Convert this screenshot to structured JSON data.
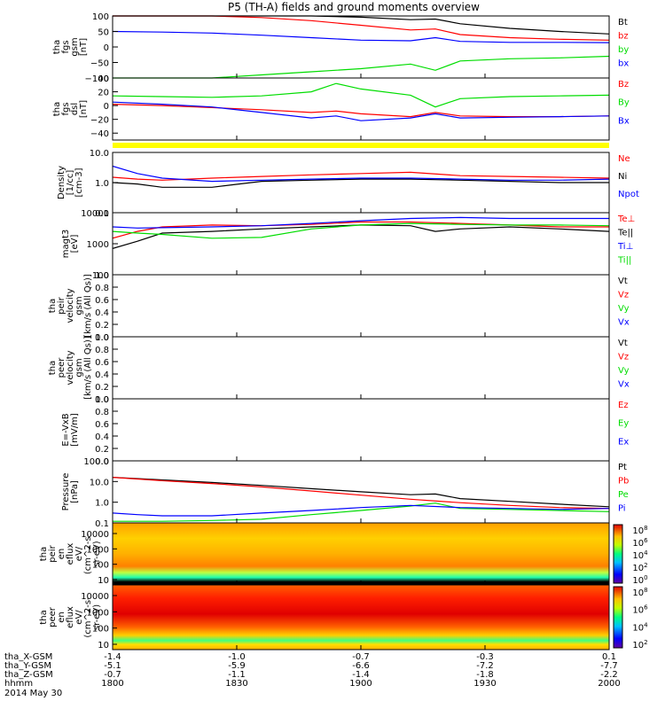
{
  "title": "P5 (TH-A) fields and ground moments overview",
  "colors": {
    "black": "#000000",
    "red": "#ff0000",
    "green": "#00dd00",
    "blue": "#0000ff",
    "yellow": "#ffff00"
  },
  "chart_data": [
    {
      "id": "fgs-gsm",
      "type": "line",
      "ylabel": [
        "tha",
        "fgs",
        "gsm",
        "[nT]"
      ],
      "yticks": [
        "100",
        "50",
        "0",
        "−50",
        "−100"
      ],
      "ylim": [
        -100,
        100
      ],
      "series": [
        {
          "name": "Bt",
          "color": "#000000",
          "x": [
            0,
            0.1,
            0.2,
            0.3,
            0.4,
            0.5,
            0.6,
            0.65,
            0.7,
            0.8,
            0.9,
            1.0
          ],
          "y": [
            130,
            122,
            115,
            110,
            103,
            96,
            88,
            90,
            75,
            60,
            50,
            42
          ]
        },
        {
          "name": "bz",
          "color": "#ff0000",
          "x": [
            0,
            0.1,
            0.2,
            0.3,
            0.4,
            0.5,
            0.6,
            0.65,
            0.7,
            0.8,
            0.9,
            1.0
          ],
          "y": [
            130,
            120,
            110,
            95,
            85,
            70,
            55,
            58,
            40,
            30,
            25,
            22
          ]
        },
        {
          "name": "by",
          "color": "#00dd00",
          "x": [
            0,
            0.1,
            0.2,
            0.3,
            0.4,
            0.5,
            0.6,
            0.65,
            0.7,
            0.8,
            0.9,
            1.0
          ],
          "y": [
            -140,
            -120,
            -100,
            -90,
            -80,
            -70,
            -55,
            -75,
            -45,
            -38,
            -35,
            -30
          ]
        },
        {
          "name": "bx",
          "color": "#0000ff",
          "x": [
            0,
            0.1,
            0.2,
            0.3,
            0.4,
            0.5,
            0.6,
            0.65,
            0.7,
            0.8,
            0.9,
            1.0
          ],
          "y": [
            50,
            48,
            45,
            38,
            30,
            22,
            20,
            30,
            18,
            15,
            15,
            14
          ]
        }
      ]
    },
    {
      "id": "fgs-dsl",
      "type": "line",
      "ylabel": [
        "tha",
        "fgs",
        "dsl",
        "[nT]"
      ],
      "yticks": [
        "40",
        "20",
        "0",
        "−20",
        "−40"
      ],
      "ylim": [
        -50,
        40
      ],
      "series": [
        {
          "name": "Bz",
          "color": "#ff0000",
          "x": [
            0,
            0.1,
            0.2,
            0.3,
            0.4,
            0.45,
            0.5,
            0.6,
            0.65,
            0.7,
            0.8,
            0.9,
            1.0
          ],
          "y": [
            2,
            0,
            -3,
            -6,
            -10,
            -8,
            -12,
            -16,
            -10,
            -15,
            -16,
            -16,
            -15
          ]
        },
        {
          "name": "By",
          "color": "#00dd00",
          "x": [
            0,
            0.1,
            0.2,
            0.3,
            0.4,
            0.45,
            0.5,
            0.6,
            0.65,
            0.7,
            0.8,
            0.9,
            1.0
          ],
          "y": [
            14,
            13,
            12,
            14,
            20,
            32,
            24,
            15,
            -2,
            10,
            13,
            14,
            15
          ]
        },
        {
          "name": "Bx",
          "color": "#0000ff",
          "x": [
            0,
            0.1,
            0.2,
            0.3,
            0.4,
            0.45,
            0.5,
            0.6,
            0.65,
            0.7,
            0.8,
            0.9,
            1.0
          ],
          "y": [
            5,
            2,
            -2,
            -10,
            -18,
            -15,
            -22,
            -18,
            -12,
            -18,
            -17,
            -16,
            -15
          ]
        }
      ]
    },
    {
      "id": "density",
      "type": "line",
      "scale": "log",
      "ylabel": [
        "Density",
        "[1/cc]",
        "[cm-3]"
      ],
      "yticks": [
        "10.0",
        "1.0",
        "0.1"
      ],
      "ylim": [
        0.1,
        10
      ],
      "series": [
        {
          "name": "Ne",
          "color": "#ff0000",
          "x": [
            0,
            0.05,
            0.1,
            0.2,
            0.3,
            0.4,
            0.5,
            0.6,
            0.7,
            0.8,
            0.9,
            1.0
          ],
          "y": [
            1.5,
            1.3,
            1.2,
            1.4,
            1.6,
            1.8,
            2.0,
            2.2,
            1.7,
            1.6,
            1.5,
            1.4
          ]
        },
        {
          "name": "Ni",
          "color": "#000000",
          "x": [
            0,
            0.05,
            0.1,
            0.2,
            0.3,
            0.4,
            0.5,
            0.6,
            0.7,
            0.8,
            0.9,
            1.0
          ],
          "y": [
            1.0,
            0.9,
            0.7,
            0.7,
            1.1,
            1.2,
            1.3,
            1.3,
            1.2,
            1.1,
            1.0,
            1.0
          ]
        },
        {
          "name": "Npot",
          "color": "#0000ff",
          "x": [
            0,
            0.05,
            0.1,
            0.2,
            0.3,
            0.4,
            0.5,
            0.6,
            0.7,
            0.8,
            0.9,
            1.0
          ],
          "y": [
            3.5,
            2.0,
            1.4,
            1.1,
            1.2,
            1.3,
            1.4,
            1.4,
            1.3,
            1.2,
            1.2,
            1.3
          ]
        }
      ]
    },
    {
      "id": "temperature",
      "type": "line",
      "scale": "log",
      "ylabel": [
        "magt3",
        "[eV]"
      ],
      "yticks": [
        "10000",
        "1000",
        "100"
      ],
      "ylim": [
        100,
        10000
      ],
      "series": [
        {
          "name": "Te⊥",
          "color": "#ff0000",
          "x": [
            0,
            0.05,
            0.1,
            0.2,
            0.3,
            0.4,
            0.5,
            0.6,
            0.7,
            0.8,
            0.9,
            1.0
          ],
          "y": [
            1500,
            2500,
            3500,
            4000,
            3800,
            4200,
            5000,
            5000,
            4500,
            4000,
            3500,
            3500
          ]
        },
        {
          "name": "Te||",
          "color": "#000000",
          "x": [
            0,
            0.05,
            0.1,
            0.2,
            0.3,
            0.4,
            0.5,
            0.6,
            0.65,
            0.7,
            0.8,
            0.9,
            1.0
          ],
          "y": [
            700,
            1200,
            2200,
            2500,
            3000,
            3500,
            4000,
            3800,
            2500,
            3000,
            3500,
            3000,
            2500
          ]
        },
        {
          "name": "Ti⊥",
          "color": "#0000ff",
          "x": [
            0,
            0.05,
            0.1,
            0.2,
            0.3,
            0.4,
            0.5,
            0.6,
            0.7,
            0.8,
            0.9,
            1.0
          ],
          "y": [
            3500,
            3200,
            3300,
            3500,
            3800,
            4500,
            5500,
            6500,
            7000,
            6500,
            6500,
            6500
          ]
        },
        {
          "name": "Ti||",
          "color": "#00dd00",
          "x": [
            0,
            0.05,
            0.1,
            0.2,
            0.3,
            0.4,
            0.5,
            0.6,
            0.7,
            0.8,
            0.9,
            1.0
          ],
          "y": [
            2500,
            2200,
            2000,
            1500,
            1600,
            3000,
            4000,
            4500,
            4200,
            4000,
            4000,
            3800
          ]
        }
      ]
    },
    {
      "id": "peir-velocity",
      "type": "line",
      "ylabel": [
        "tha",
        "peir",
        "velocity",
        "gsm",
        "[km/s (All Qs)]"
      ],
      "yticks": [
        "1.0",
        "0.8",
        "0.6",
        "0.4",
        "0.2",
        "0.0"
      ],
      "ylim": [
        0,
        1
      ],
      "series": [
        {
          "name": "Vt",
          "color": "#000000",
          "x": [],
          "y": []
        },
        {
          "name": "Vz",
          "color": "#ff0000",
          "x": [],
          "y": []
        },
        {
          "name": "Vy",
          "color": "#00dd00",
          "x": [],
          "y": []
        },
        {
          "name": "Vx",
          "color": "#0000ff",
          "x": [],
          "y": []
        }
      ]
    },
    {
      "id": "peer-velocity",
      "type": "line",
      "ylabel": [
        "tha",
        "peer",
        "velocity",
        "gsm",
        "[km/s (All Qs)]"
      ],
      "yticks": [
        "1.0",
        "0.8",
        "0.6",
        "0.4",
        "0.2",
        "0.0"
      ],
      "ylim": [
        0,
        1
      ],
      "series": [
        {
          "name": "Vt",
          "color": "#000000",
          "x": [],
          "y": []
        },
        {
          "name": "Vz",
          "color": "#ff0000",
          "x": [],
          "y": []
        },
        {
          "name": "Vy",
          "color": "#00dd00",
          "x": [],
          "y": []
        },
        {
          "name": "Vx",
          "color": "#0000ff",
          "x": [],
          "y": []
        }
      ]
    },
    {
      "id": "efield",
      "type": "line",
      "ylabel": [
        "E=-VxB",
        "[mV/m]"
      ],
      "yticks": [
        "1.0",
        "0.8",
        "0.6",
        "0.4",
        "0.2",
        "0.0"
      ],
      "ylim": [
        0,
        1
      ],
      "series": [
        {
          "name": "Ez",
          "color": "#ff0000",
          "x": [],
          "y": []
        },
        {
          "name": "Ey",
          "color": "#00dd00",
          "x": [],
          "y": []
        },
        {
          "name": "Ex",
          "color": "#0000ff",
          "x": [],
          "y": []
        }
      ]
    },
    {
      "id": "pressure",
      "type": "line",
      "scale": "log",
      "ylabel": [
        "Pressure",
        "[nPa]"
      ],
      "yticks": [
        "100.0",
        "10.0",
        "1.0",
        "0.1"
      ],
      "ylim": [
        0.1,
        100
      ],
      "series": [
        {
          "name": "Pt",
          "color": "#000000",
          "x": [
            0,
            0.1,
            0.2,
            0.3,
            0.4,
            0.5,
            0.6,
            0.65,
            0.7,
            0.8,
            0.9,
            1.0
          ],
          "y": [
            16,
            12,
            9,
            6.5,
            4.5,
            3.2,
            2.3,
            2.5,
            1.5,
            1.1,
            0.8,
            0.6
          ]
        },
        {
          "name": "Pb",
          "color": "#ff0000",
          "x": [
            0,
            0.1,
            0.2,
            0.3,
            0.4,
            0.5,
            0.6,
            0.7,
            0.8,
            0.9,
            1.0
          ],
          "y": [
            16,
            11,
            8,
            5.5,
            3.5,
            2.2,
            1.4,
            0.95,
            0.7,
            0.55,
            0.5
          ]
        },
        {
          "name": "Pe",
          "color": "#00dd00",
          "x": [
            0,
            0.1,
            0.2,
            0.3,
            0.4,
            0.5,
            0.6,
            0.65,
            0.7,
            0.8,
            0.9,
            1.0
          ],
          "y": [
            0.12,
            0.12,
            0.13,
            0.15,
            0.25,
            0.4,
            0.65,
            0.9,
            0.5,
            0.45,
            0.4,
            0.35
          ]
        },
        {
          "name": "Pi",
          "color": "#0000ff",
          "x": [
            0,
            0.05,
            0.1,
            0.2,
            0.3,
            0.4,
            0.5,
            0.6,
            0.7,
            0.8,
            0.9,
            1.0
          ],
          "y": [
            0.3,
            0.25,
            0.22,
            0.22,
            0.3,
            0.4,
            0.55,
            0.7,
            0.55,
            0.5,
            0.45,
            0.5
          ]
        }
      ]
    },
    {
      "id": "peir-spectrogram",
      "type": "heatmap",
      "ylabel": [
        "tha",
        "peir",
        "en",
        "eflux",
        "eV/",
        "(cm^2-s-",
        "sr-eV)"
      ],
      "yticks": [
        "10000",
        "1000",
        "100",
        "10"
      ],
      "colorbar_ticks": [
        "10^8",
        "10^6",
        "10^4",
        "10^2",
        "10^0"
      ]
    },
    {
      "id": "peer-spectrogram",
      "type": "heatmap",
      "ylabel": [
        "tha",
        "peer",
        "en",
        "eflux",
        "eV/",
        "(cm^2-s-",
        "sr-eV)"
      ],
      "yticks": [
        "10000",
        "1000",
        "100",
        "10"
      ],
      "colorbar_ticks": [
        "10^8",
        "10^6",
        "10^4",
        "10^2"
      ]
    }
  ],
  "x_axis": {
    "row_labels": [
      "tha_X-GSM",
      "tha_Y-GSM",
      "tha_Z-GSM",
      "hhmm",
      "2014 May 30"
    ],
    "ticks": [
      {
        "x": -1.4,
        "y": -5.1,
        "z": -0.7,
        "hhmm": "1800"
      },
      {
        "x": -1.0,
        "y": -5.9,
        "z": -1.1,
        "hhmm": "1830"
      },
      {
        "x": -0.7,
        "y": -6.6,
        "z": -1.4,
        "hhmm": "1900"
      },
      {
        "x": -0.3,
        "y": -7.2,
        "z": -1.8,
        "hhmm": "1930"
      },
      {
        "x": 0.1,
        "y": -7.7,
        "z": -2.2,
        "hhmm": "2000"
      }
    ]
  }
}
